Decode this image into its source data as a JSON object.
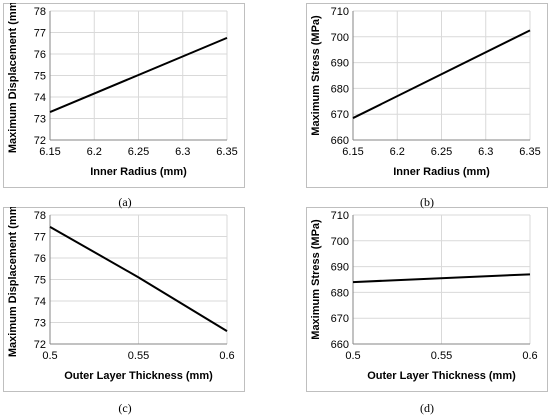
{
  "panels": [
    {
      "caption": "(a)",
      "chart_data": {
        "type": "line",
        "title": "",
        "xlabel": "Inner Radius (mm)",
        "ylabel": "Maximum Displacement (mm)",
        "xlim": [
          6.15,
          6.35
        ],
        "ylim": [
          72,
          78
        ],
        "xticks": [
          "6.15",
          "6.2",
          "6.25",
          "6.3",
          "6.35"
        ],
        "yticks": [
          "72",
          "73",
          "74",
          "75",
          "76",
          "77",
          "78"
        ],
        "grid": true,
        "legend": "none",
        "series": [
          {
            "x": [
              6.15,
              6.35
            ],
            "y": [
              73.3,
              76.75
            ]
          }
        ]
      }
    },
    {
      "caption": "(b)",
      "chart_data": {
        "type": "line",
        "title": "",
        "xlabel": "Inner Radius (mm)",
        "ylabel": "Maximum Stress (MPa)",
        "xlim": [
          6.15,
          6.35
        ],
        "ylim": [
          660,
          710
        ],
        "xticks": [
          "6.15",
          "6.2",
          "6.25",
          "6.3",
          "6.35"
        ],
        "yticks": [
          "660",
          "670",
          "680",
          "690",
          "700",
          "710"
        ],
        "grid": true,
        "legend": "none",
        "series": [
          {
            "x": [
              6.15,
              6.35
            ],
            "y": [
              668.5,
              702.5
            ]
          }
        ]
      }
    },
    {
      "caption": "(c)",
      "chart_data": {
        "type": "line",
        "title": "",
        "xlabel": "Outer Layer Thickness (mm)",
        "ylabel": "Maximum Displacement (mm)",
        "xlim": [
          0.5,
          0.6
        ],
        "ylim": [
          72,
          78
        ],
        "xticks": [
          "0.5",
          "0.55",
          "0.6"
        ],
        "yticks": [
          "72",
          "73",
          "74",
          "75",
          "76",
          "77",
          "78"
        ],
        "grid": true,
        "legend": "none",
        "series": [
          {
            "x": [
              0.5,
              0.55,
              0.6
            ],
            "y": [
              77.45,
              75.1,
              72.6
            ]
          }
        ]
      }
    },
    {
      "caption": "(d)",
      "chart_data": {
        "type": "line",
        "title": "",
        "xlabel": "Outer Layer Thickness (mm)",
        "ylabel": "Maximum Stress (MPa)",
        "xlim": [
          0.5,
          0.6
        ],
        "ylim": [
          660,
          710
        ],
        "xticks": [
          "0.5",
          "0.55",
          "0.6"
        ],
        "yticks": [
          "660",
          "670",
          "680",
          "690",
          "700",
          "710"
        ],
        "grid": true,
        "legend": "none",
        "series": [
          {
            "x": [
              0.5,
              0.6
            ],
            "y": [
              684,
              687
            ]
          }
        ]
      }
    }
  ],
  "style": {
    "line_color": "#000000",
    "grid_color": "#d9d9d9",
    "border_color": "#bfbfbf",
    "text_color": "#000000"
  }
}
